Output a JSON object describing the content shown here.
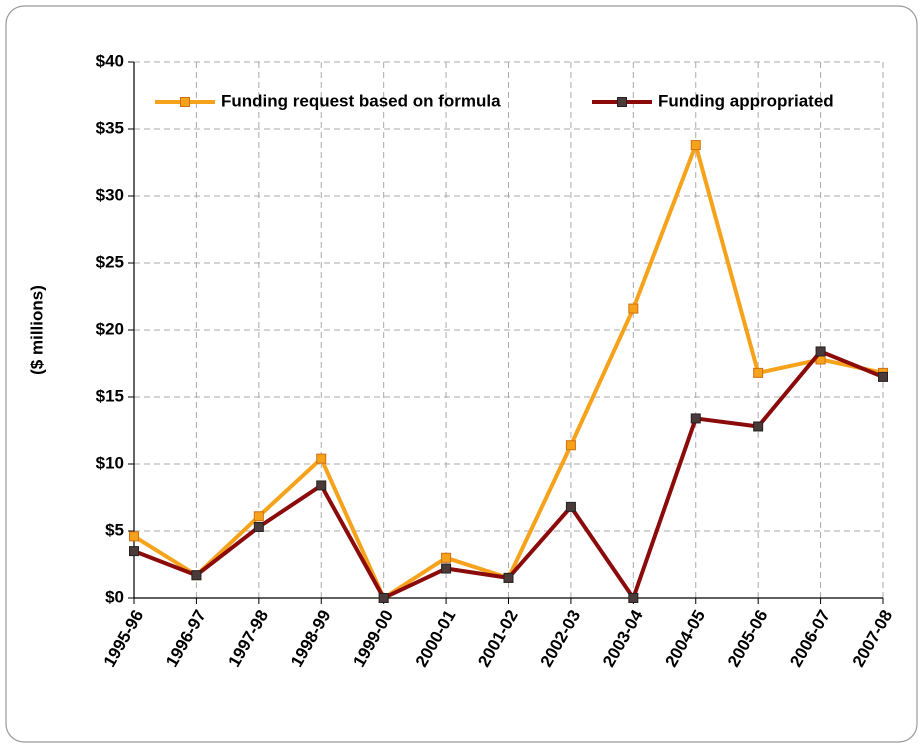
{
  "chart_data": {
    "type": "line",
    "y_label": "($ millions)",
    "categories": [
      "1995-96",
      "1996-97",
      "1997-98",
      "1998-99",
      "1999-00",
      "2000-01",
      "2001-02",
      "2002-03",
      "2003-04",
      "2004-05",
      "2005-06",
      "2006-07",
      "2007-08"
    ],
    "series": [
      {
        "name": "Funding request based on formula",
        "color": "#f7a21b",
        "marker_color": "#f7a21b",
        "values": [
          4.6,
          1.7,
          6.1,
          10.4,
          0,
          3.0,
          1.5,
          11.4,
          21.6,
          33.8,
          16.8,
          17.8,
          16.8
        ]
      },
      {
        "name": "Funding appropriated",
        "color": "#8b0a0a",
        "marker_color": "#4a3a3a",
        "values": [
          3.5,
          1.7,
          5.3,
          8.4,
          0,
          2.2,
          1.5,
          6.8,
          0,
          13.4,
          12.8,
          18.4,
          16.5
        ]
      }
    ],
    "ylim": [
      0,
      40
    ],
    "yticks": [
      {
        "value": 0,
        "label": "$0"
      },
      {
        "value": 5,
        "label": "$5"
      },
      {
        "value": 10,
        "label": "$10"
      },
      {
        "value": 15,
        "label": "$15"
      },
      {
        "value": 20,
        "label": "$20"
      },
      {
        "value": 25,
        "label": "$25"
      },
      {
        "value": 30,
        "label": "$30"
      },
      {
        "value": 35,
        "label": "$35"
      },
      {
        "value": 40,
        "label": "$40"
      }
    ],
    "grid": true,
    "legend": "top"
  }
}
